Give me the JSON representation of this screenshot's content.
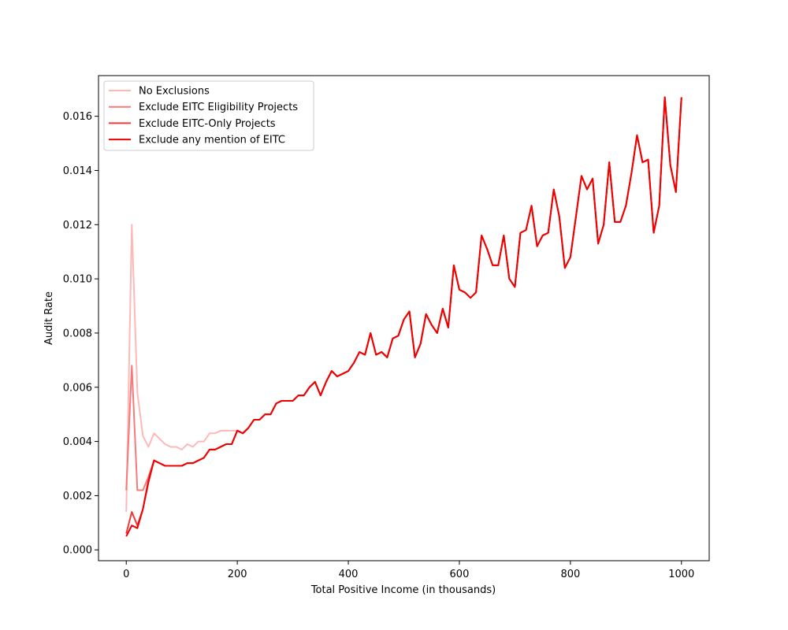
{
  "chart_data": {
    "type": "line",
    "title": "",
    "xlabel": "Total Positive Income (in thousands)",
    "ylabel": "Audit Rate",
    "xlim": [
      -50,
      1050
    ],
    "ylim": [
      -0.0004,
      0.0175
    ],
    "x_ticks": [
      0,
      200,
      400,
      600,
      800,
      1000
    ],
    "y_ticks": [
      0.0,
      0.002,
      0.004,
      0.006,
      0.008,
      0.01,
      0.012,
      0.014,
      0.016
    ],
    "y_tick_labels": [
      "0.000",
      "0.002",
      "0.004",
      "0.006",
      "0.008",
      "0.010",
      "0.012",
      "0.014",
      "0.016"
    ],
    "x_tick_labels": [
      "0",
      "200",
      "400",
      "600",
      "800",
      "1000"
    ],
    "grid": false,
    "legend_position": "top-left",
    "x": [
      0,
      10,
      20,
      30,
      40,
      50,
      60,
      70,
      80,
      90,
      100,
      110,
      120,
      130,
      140,
      150,
      160,
      170,
      180,
      190,
      200,
      210,
      220,
      230,
      240,
      250,
      260,
      270,
      280,
      290,
      300,
      310,
      320,
      330,
      340,
      350,
      360,
      370,
      380,
      390,
      400,
      410,
      420,
      430,
      440,
      450,
      460,
      470,
      480,
      490,
      500,
      510,
      520,
      530,
      540,
      550,
      560,
      570,
      580,
      590,
      600,
      610,
      620,
      630,
      640,
      650,
      660,
      670,
      680,
      690,
      700,
      710,
      720,
      730,
      740,
      750,
      760,
      770,
      780,
      790,
      800,
      810,
      820,
      830,
      840,
      850,
      860,
      870,
      880,
      890,
      900,
      910,
      920,
      930,
      940,
      950,
      960,
      970,
      980,
      990,
      1000
    ],
    "series": [
      {
        "name": "No Exclusions",
        "color": "#ffb8b8",
        "values": [
          0.0014,
          0.012,
          0.0058,
          0.0042,
          0.0038,
          0.0043,
          0.0041,
          0.0039,
          0.0038,
          0.0038,
          0.0037,
          0.0039,
          0.0038,
          0.004,
          0.004,
          0.0043,
          0.0043,
          0.0044,
          0.0044,
          0.0044,
          0.0044,
          0.0043,
          0.0045,
          0.0048,
          0.0048,
          0.005,
          0.005,
          0.0054,
          0.0055,
          0.0055,
          0.0055,
          0.0057,
          0.0057,
          0.006,
          0.0062,
          0.0057,
          0.0062,
          0.0066,
          0.0064,
          0.0065,
          0.0066,
          0.0069,
          0.0073,
          0.0072,
          0.008,
          0.0072,
          0.0073,
          0.0071,
          0.0078,
          0.0079,
          0.0085,
          0.0088,
          0.0071,
          0.0076,
          0.0087,
          0.0083,
          0.008,
          0.0089,
          0.0082,
          0.0105,
          0.0096,
          0.0095,
          0.0093,
          0.0095,
          0.0116,
          0.0111,
          0.0105,
          0.0105,
          0.0116,
          0.01,
          0.0097,
          0.0117,
          0.0118,
          0.0127,
          0.0112,
          0.0116,
          0.0117,
          0.0133,
          0.0123,
          0.0104,
          0.0108,
          0.0123,
          0.0138,
          0.0133,
          0.0137,
          0.0113,
          0.012,
          0.0143,
          0.0121,
          0.0121,
          0.0127,
          0.0139,
          0.0153,
          0.0143,
          0.0144,
          0.0117,
          0.0127,
          0.0167,
          0.0142,
          0.0132,
          0.0167
        ]
      },
      {
        "name": "Exclude EITC Eligibility Projects",
        "color": "#f77a7a",
        "values": [
          0.0022,
          0.0068,
          0.0022,
          0.0022,
          0.0027,
          0.0033,
          0.0032,
          0.0031,
          0.0031,
          0.0031,
          0.0031,
          0.0032,
          0.0032,
          0.0033,
          0.0034,
          0.0037,
          0.0037,
          0.0038,
          0.0039,
          0.0039,
          0.0044,
          0.0043,
          0.0045,
          0.0048,
          0.0048,
          0.005,
          0.005,
          0.0054,
          0.0055,
          0.0055,
          0.0055,
          0.0057,
          0.0057,
          0.006,
          0.0062,
          0.0057,
          0.0062,
          0.0066,
          0.0064,
          0.0065,
          0.0066,
          0.0069,
          0.0073,
          0.0072,
          0.008,
          0.0072,
          0.0073,
          0.0071,
          0.0078,
          0.0079,
          0.0085,
          0.0088,
          0.0071,
          0.0076,
          0.0087,
          0.0083,
          0.008,
          0.0089,
          0.0082,
          0.0105,
          0.0096,
          0.0095,
          0.0093,
          0.0095,
          0.0116,
          0.0111,
          0.0105,
          0.0105,
          0.0116,
          0.01,
          0.0097,
          0.0117,
          0.0118,
          0.0127,
          0.0112,
          0.0116,
          0.0117,
          0.0133,
          0.0123,
          0.0104,
          0.0108,
          0.0123,
          0.0138,
          0.0133,
          0.0137,
          0.0113,
          0.012,
          0.0143,
          0.0121,
          0.0121,
          0.0127,
          0.0139,
          0.0153,
          0.0143,
          0.0144,
          0.0117,
          0.0127,
          0.0167,
          0.0142,
          0.0132,
          0.0167
        ]
      },
      {
        "name": "Exclude EITC-Only Projects",
        "color": "#f03a3a",
        "values": [
          0.0006,
          0.0014,
          0.0009,
          0.0015,
          0.0026,
          0.0033,
          0.0032,
          0.0031,
          0.0031,
          0.0031,
          0.0031,
          0.0032,
          0.0032,
          0.0033,
          0.0034,
          0.0037,
          0.0037,
          0.0038,
          0.0039,
          0.0039,
          0.0044,
          0.0043,
          0.0045,
          0.0048,
          0.0048,
          0.005,
          0.005,
          0.0054,
          0.0055,
          0.0055,
          0.0055,
          0.0057,
          0.0057,
          0.006,
          0.0062,
          0.0057,
          0.0062,
          0.0066,
          0.0064,
          0.0065,
          0.0066,
          0.0069,
          0.0073,
          0.0072,
          0.008,
          0.0072,
          0.0073,
          0.0071,
          0.0078,
          0.0079,
          0.0085,
          0.0088,
          0.0071,
          0.0076,
          0.0087,
          0.0083,
          0.008,
          0.0089,
          0.0082,
          0.0105,
          0.0096,
          0.0095,
          0.0093,
          0.0095,
          0.0116,
          0.0111,
          0.0105,
          0.0105,
          0.0116,
          0.01,
          0.0097,
          0.0117,
          0.0118,
          0.0127,
          0.0112,
          0.0116,
          0.0117,
          0.0133,
          0.0123,
          0.0104,
          0.0108,
          0.0123,
          0.0138,
          0.0133,
          0.0137,
          0.0113,
          0.012,
          0.0143,
          0.0121,
          0.0121,
          0.0127,
          0.0139,
          0.0153,
          0.0143,
          0.0144,
          0.0117,
          0.0127,
          0.0167,
          0.0142,
          0.0132,
          0.0167
        ]
      },
      {
        "name": "Exclude any mention of EITC",
        "color": "#ee0000",
        "values": [
          0.0005,
          0.0009,
          0.0008,
          0.0015,
          0.0025,
          0.0033,
          0.0032,
          0.0031,
          0.0031,
          0.0031,
          0.0031,
          0.0032,
          0.0032,
          0.0033,
          0.0034,
          0.0037,
          0.0037,
          0.0038,
          0.0039,
          0.0039,
          0.0044,
          0.0043,
          0.0045,
          0.0048,
          0.0048,
          0.005,
          0.005,
          0.0054,
          0.0055,
          0.0055,
          0.0055,
          0.0057,
          0.0057,
          0.006,
          0.0062,
          0.0057,
          0.0062,
          0.0066,
          0.0064,
          0.0065,
          0.0066,
          0.0069,
          0.0073,
          0.0072,
          0.008,
          0.0072,
          0.0073,
          0.0071,
          0.0078,
          0.0079,
          0.0085,
          0.0088,
          0.0071,
          0.0076,
          0.0087,
          0.0083,
          0.008,
          0.0089,
          0.0082,
          0.0105,
          0.0096,
          0.0095,
          0.0093,
          0.0095,
          0.0116,
          0.0111,
          0.0105,
          0.0105,
          0.0116,
          0.01,
          0.0097,
          0.0117,
          0.0118,
          0.0127,
          0.0112,
          0.0116,
          0.0117,
          0.0133,
          0.0123,
          0.0104,
          0.0108,
          0.0123,
          0.0138,
          0.0133,
          0.0137,
          0.0113,
          0.012,
          0.0143,
          0.0121,
          0.0121,
          0.0127,
          0.0139,
          0.0153,
          0.0143,
          0.0144,
          0.0117,
          0.0127,
          0.0167,
          0.0142,
          0.0132,
          0.0167
        ]
      }
    ]
  }
}
